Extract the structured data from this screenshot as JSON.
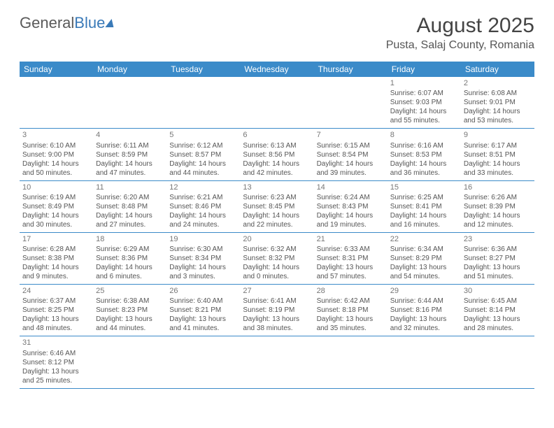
{
  "logo": {
    "text1": "General",
    "text2": "Blue"
  },
  "title": "August 2025",
  "location": "Pusta, Salaj County, Romania",
  "headers": [
    "Sunday",
    "Monday",
    "Tuesday",
    "Wednesday",
    "Thursday",
    "Friday",
    "Saturday"
  ],
  "colors": {
    "header_bg": "#3b8bc9",
    "header_fg": "#ffffff",
    "text": "#555555"
  },
  "weeks": [
    [
      null,
      null,
      null,
      null,
      null,
      {
        "n": "1",
        "sr": "Sunrise: 6:07 AM",
        "ss": "Sunset: 9:03 PM",
        "d1": "Daylight: 14 hours",
        "d2": "and 55 minutes."
      },
      {
        "n": "2",
        "sr": "Sunrise: 6:08 AM",
        "ss": "Sunset: 9:01 PM",
        "d1": "Daylight: 14 hours",
        "d2": "and 53 minutes."
      }
    ],
    [
      {
        "n": "3",
        "sr": "Sunrise: 6:10 AM",
        "ss": "Sunset: 9:00 PM",
        "d1": "Daylight: 14 hours",
        "d2": "and 50 minutes."
      },
      {
        "n": "4",
        "sr": "Sunrise: 6:11 AM",
        "ss": "Sunset: 8:59 PM",
        "d1": "Daylight: 14 hours",
        "d2": "and 47 minutes."
      },
      {
        "n": "5",
        "sr": "Sunrise: 6:12 AM",
        "ss": "Sunset: 8:57 PM",
        "d1": "Daylight: 14 hours",
        "d2": "and 44 minutes."
      },
      {
        "n": "6",
        "sr": "Sunrise: 6:13 AM",
        "ss": "Sunset: 8:56 PM",
        "d1": "Daylight: 14 hours",
        "d2": "and 42 minutes."
      },
      {
        "n": "7",
        "sr": "Sunrise: 6:15 AM",
        "ss": "Sunset: 8:54 PM",
        "d1": "Daylight: 14 hours",
        "d2": "and 39 minutes."
      },
      {
        "n": "8",
        "sr": "Sunrise: 6:16 AM",
        "ss": "Sunset: 8:53 PM",
        "d1": "Daylight: 14 hours",
        "d2": "and 36 minutes."
      },
      {
        "n": "9",
        "sr": "Sunrise: 6:17 AM",
        "ss": "Sunset: 8:51 PM",
        "d1": "Daylight: 14 hours",
        "d2": "and 33 minutes."
      }
    ],
    [
      {
        "n": "10",
        "sr": "Sunrise: 6:19 AM",
        "ss": "Sunset: 8:49 PM",
        "d1": "Daylight: 14 hours",
        "d2": "and 30 minutes."
      },
      {
        "n": "11",
        "sr": "Sunrise: 6:20 AM",
        "ss": "Sunset: 8:48 PM",
        "d1": "Daylight: 14 hours",
        "d2": "and 27 minutes."
      },
      {
        "n": "12",
        "sr": "Sunrise: 6:21 AM",
        "ss": "Sunset: 8:46 PM",
        "d1": "Daylight: 14 hours",
        "d2": "and 24 minutes."
      },
      {
        "n": "13",
        "sr": "Sunrise: 6:23 AM",
        "ss": "Sunset: 8:45 PM",
        "d1": "Daylight: 14 hours",
        "d2": "and 22 minutes."
      },
      {
        "n": "14",
        "sr": "Sunrise: 6:24 AM",
        "ss": "Sunset: 8:43 PM",
        "d1": "Daylight: 14 hours",
        "d2": "and 19 minutes."
      },
      {
        "n": "15",
        "sr": "Sunrise: 6:25 AM",
        "ss": "Sunset: 8:41 PM",
        "d1": "Daylight: 14 hours",
        "d2": "and 16 minutes."
      },
      {
        "n": "16",
        "sr": "Sunrise: 6:26 AM",
        "ss": "Sunset: 8:39 PM",
        "d1": "Daylight: 14 hours",
        "d2": "and 12 minutes."
      }
    ],
    [
      {
        "n": "17",
        "sr": "Sunrise: 6:28 AM",
        "ss": "Sunset: 8:38 PM",
        "d1": "Daylight: 14 hours",
        "d2": "and 9 minutes."
      },
      {
        "n": "18",
        "sr": "Sunrise: 6:29 AM",
        "ss": "Sunset: 8:36 PM",
        "d1": "Daylight: 14 hours",
        "d2": "and 6 minutes."
      },
      {
        "n": "19",
        "sr": "Sunrise: 6:30 AM",
        "ss": "Sunset: 8:34 PM",
        "d1": "Daylight: 14 hours",
        "d2": "and 3 minutes."
      },
      {
        "n": "20",
        "sr": "Sunrise: 6:32 AM",
        "ss": "Sunset: 8:32 PM",
        "d1": "Daylight: 14 hours",
        "d2": "and 0 minutes."
      },
      {
        "n": "21",
        "sr": "Sunrise: 6:33 AM",
        "ss": "Sunset: 8:31 PM",
        "d1": "Daylight: 13 hours",
        "d2": "and 57 minutes."
      },
      {
        "n": "22",
        "sr": "Sunrise: 6:34 AM",
        "ss": "Sunset: 8:29 PM",
        "d1": "Daylight: 13 hours",
        "d2": "and 54 minutes."
      },
      {
        "n": "23",
        "sr": "Sunrise: 6:36 AM",
        "ss": "Sunset: 8:27 PM",
        "d1": "Daylight: 13 hours",
        "d2": "and 51 minutes."
      }
    ],
    [
      {
        "n": "24",
        "sr": "Sunrise: 6:37 AM",
        "ss": "Sunset: 8:25 PM",
        "d1": "Daylight: 13 hours",
        "d2": "and 48 minutes."
      },
      {
        "n": "25",
        "sr": "Sunrise: 6:38 AM",
        "ss": "Sunset: 8:23 PM",
        "d1": "Daylight: 13 hours",
        "d2": "and 44 minutes."
      },
      {
        "n": "26",
        "sr": "Sunrise: 6:40 AM",
        "ss": "Sunset: 8:21 PM",
        "d1": "Daylight: 13 hours",
        "d2": "and 41 minutes."
      },
      {
        "n": "27",
        "sr": "Sunrise: 6:41 AM",
        "ss": "Sunset: 8:19 PM",
        "d1": "Daylight: 13 hours",
        "d2": "and 38 minutes."
      },
      {
        "n": "28",
        "sr": "Sunrise: 6:42 AM",
        "ss": "Sunset: 8:18 PM",
        "d1": "Daylight: 13 hours",
        "d2": "and 35 minutes."
      },
      {
        "n": "29",
        "sr": "Sunrise: 6:44 AM",
        "ss": "Sunset: 8:16 PM",
        "d1": "Daylight: 13 hours",
        "d2": "and 32 minutes."
      },
      {
        "n": "30",
        "sr": "Sunrise: 6:45 AM",
        "ss": "Sunset: 8:14 PM",
        "d1": "Daylight: 13 hours",
        "d2": "and 28 minutes."
      }
    ],
    [
      {
        "n": "31",
        "sr": "Sunrise: 6:46 AM",
        "ss": "Sunset: 8:12 PM",
        "d1": "Daylight: 13 hours",
        "d2": "and 25 minutes."
      },
      null,
      null,
      null,
      null,
      null,
      null
    ]
  ]
}
